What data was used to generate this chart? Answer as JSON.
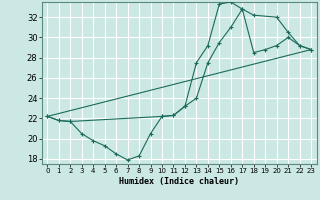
{
  "title": "",
  "xlabel": "Humidex (Indice chaleur)",
  "bg_color": "#cce8e4",
  "grid_color": "#ffffff",
  "line_color": "#1a6b5a",
  "xlim": [
    -0.5,
    23.5
  ],
  "ylim": [
    17.5,
    33.5
  ],
  "xticks": [
    0,
    1,
    2,
    3,
    4,
    5,
    6,
    7,
    8,
    9,
    10,
    11,
    12,
    13,
    14,
    15,
    16,
    17,
    18,
    19,
    20,
    21,
    22,
    23
  ],
  "yticks": [
    18,
    20,
    22,
    24,
    26,
    28,
    30,
    32
  ],
  "line1_x": [
    0,
    1,
    2,
    3,
    4,
    5,
    6,
    7,
    8,
    9,
    10,
    11,
    12,
    13,
    14,
    15,
    16,
    17,
    18,
    20,
    21,
    22,
    23
  ],
  "line1_y": [
    22.2,
    21.8,
    21.7,
    20.5,
    19.8,
    19.3,
    18.5,
    17.9,
    18.3,
    20.5,
    22.2,
    22.3,
    23.2,
    27.5,
    29.2,
    33.3,
    33.5,
    32.8,
    32.2,
    32.0,
    30.5,
    29.2,
    28.8
  ],
  "line2_x": [
    0,
    1,
    2,
    10,
    11,
    12,
    13,
    14,
    15,
    16,
    17,
    18,
    19,
    20,
    21,
    22,
    23
  ],
  "line2_y": [
    22.2,
    21.8,
    21.7,
    22.2,
    22.3,
    23.2,
    24.0,
    27.5,
    29.5,
    31.0,
    32.8,
    28.5,
    28.8,
    29.2,
    30.0,
    29.2,
    28.8
  ],
  "line3_x": [
    0,
    23
  ],
  "line3_y": [
    22.2,
    28.8
  ]
}
